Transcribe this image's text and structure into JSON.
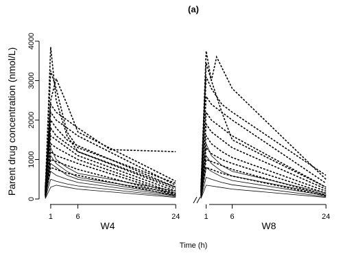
{
  "chart_data": {
    "type": "line",
    "title": "(a)",
    "xlabel": "Time (h)",
    "ylabel": "Parent drug concentration (nmol/L)",
    "ylim": [
      0,
      4000
    ],
    "yticks": [
      0,
      1000,
      2000,
      3000,
      4000
    ],
    "grid": false,
    "legend": "none",
    "panels": [
      {
        "name": "W4",
        "xlim": [
          0,
          27
        ],
        "xticks": [
          1,
          6,
          24
        ],
        "dashed_series": [
          [
            [
              0,
              200
            ],
            [
              1,
              3850
            ],
            [
              2,
              2500
            ],
            [
              4,
              1600
            ],
            [
              6,
              1200
            ],
            [
              24,
              300
            ]
          ],
          [
            [
              0,
              100
            ],
            [
              1,
              3250
            ],
            [
              2,
              2800
            ],
            [
              4,
              1700
            ],
            [
              6,
              1300
            ],
            [
              24,
              400
            ]
          ],
          [
            [
              0,
              150
            ],
            [
              1,
              2500
            ],
            [
              2,
              3050
            ],
            [
              4,
              2400
            ],
            [
              6,
              1700
            ],
            [
              24,
              450
            ]
          ],
          [
            [
              0,
              300
            ],
            [
              1,
              2400
            ],
            [
              2,
              2200
            ],
            [
              4,
              2000
            ],
            [
              6,
              1800
            ],
            [
              12,
              1250
            ],
            [
              24,
              1200
            ]
          ],
          [
            [
              0,
              250
            ],
            [
              1,
              2200
            ],
            [
              2,
              2000
            ],
            [
              4,
              1800
            ],
            [
              6,
              1600
            ],
            [
              24,
              350
            ]
          ],
          [
            [
              0,
              200
            ],
            [
              1,
              2000
            ],
            [
              2,
              1800
            ],
            [
              4,
              1500
            ],
            [
              6,
              1350
            ],
            [
              24,
              300
            ]
          ],
          [
            [
              0,
              150
            ],
            [
              1,
              1800
            ],
            [
              2,
              1600
            ],
            [
              4,
              1400
            ],
            [
              6,
              1200
            ],
            [
              24,
              250
            ]
          ],
          [
            [
              0,
              100
            ],
            [
              1,
              1600
            ],
            [
              2,
              1500
            ],
            [
              4,
              1300
            ],
            [
              6,
              1100
            ],
            [
              24,
              200
            ]
          ],
          [
            [
              0,
              100
            ],
            [
              1,
              1400
            ],
            [
              2,
              1300
            ],
            [
              4,
              1150
            ],
            [
              6,
              1000
            ],
            [
              24,
              150
            ]
          ],
          [
            [
              0,
              100
            ],
            [
              1,
              1200
            ],
            [
              2,
              1100
            ],
            [
              4,
              1000
            ],
            [
              6,
              900
            ],
            [
              24,
              120
            ]
          ],
          [
            [
              0,
              80
            ],
            [
              1,
              1000
            ],
            [
              2,
              950
            ],
            [
              4,
              850
            ],
            [
              6,
              750
            ],
            [
              24,
              100
            ]
          ],
          [
            [
              0,
              60
            ],
            [
              1,
              800
            ],
            [
              2,
              750
            ],
            [
              4,
              650
            ],
            [
              6,
              600
            ],
            [
              24,
              80
            ]
          ]
        ],
        "solid_series": [
          [
            [
              0,
              50
            ],
            [
              1,
              1300
            ],
            [
              2,
              1000
            ],
            [
              4,
              800
            ],
            [
              6,
              650
            ],
            [
              24,
              200
            ]
          ],
          [
            [
              0,
              50
            ],
            [
              1,
              1100
            ],
            [
              2,
              900
            ],
            [
              4,
              700
            ],
            [
              6,
              550
            ],
            [
              24,
              150
            ]
          ],
          [
            [
              0,
              40
            ],
            [
              1,
              900
            ],
            [
              2,
              800
            ],
            [
              4,
              600
            ],
            [
              6,
              500
            ],
            [
              24,
              100
            ]
          ],
          [
            [
              0,
              30
            ],
            [
              1,
              700
            ],
            [
              2,
              600
            ],
            [
              4,
              500
            ],
            [
              6,
              420
            ],
            [
              24,
              80
            ]
          ],
          [
            [
              0,
              20
            ],
            [
              1,
              500
            ],
            [
              2,
              450
            ],
            [
              4,
              380
            ],
            [
              6,
              330
            ],
            [
              24,
              60
            ]
          ],
          [
            [
              0,
              10
            ],
            [
              1,
              300
            ],
            [
              2,
              350
            ],
            [
              4,
              300
            ],
            [
              6,
              250
            ],
            [
              24,
              40
            ]
          ]
        ]
      },
      {
        "name": "W8",
        "xlim": [
          0,
          27
        ],
        "xticks": [
          1,
          6,
          24
        ],
        "dashed_series": [
          [
            [
              0,
              300
            ],
            [
              1,
              3750
            ],
            [
              2,
              3000
            ],
            [
              4,
              2200
            ],
            [
              6,
              1500
            ],
            [
              24,
              300
            ]
          ],
          [
            [
              0,
              250
            ],
            [
              1,
              3450
            ],
            [
              2,
              3000
            ],
            [
              3,
              3600
            ],
            [
              6,
              2800
            ],
            [
              24,
              500
            ]
          ],
          [
            [
              0,
              200
            ],
            [
              1,
              3100
            ],
            [
              2,
              2800
            ],
            [
              4,
              2400
            ],
            [
              6,
              2200
            ],
            [
              24,
              600
            ]
          ],
          [
            [
              0,
              200
            ],
            [
              1,
              2600
            ],
            [
              2,
              2400
            ],
            [
              4,
              2200
            ],
            [
              6,
              2000
            ],
            [
              24,
              400
            ]
          ],
          [
            [
              0,
              150
            ],
            [
              1,
              2200
            ],
            [
              2,
              2000
            ],
            [
              4,
              1800
            ],
            [
              6,
              1600
            ],
            [
              24,
              300
            ]
          ],
          [
            [
              0,
              150
            ],
            [
              1,
              1900
            ],
            [
              2,
              1700
            ],
            [
              4,
              1500
            ],
            [
              6,
              1300
            ],
            [
              24,
              250
            ]
          ],
          [
            [
              0,
              100
            ],
            [
              1,
              1600
            ],
            [
              2,
              1400
            ],
            [
              4,
              1200
            ],
            [
              6,
              1050
            ],
            [
              24,
              200
            ]
          ],
          [
            [
              0,
              100
            ],
            [
              1,
              1300
            ],
            [
              2,
              1150
            ],
            [
              4,
              1000
            ],
            [
              6,
              900
            ],
            [
              24,
              150
            ]
          ],
          [
            [
              0,
              80
            ],
            [
              1,
              1000
            ],
            [
              2,
              950
            ],
            [
              4,
              850
            ],
            [
              6,
              750
            ],
            [
              24,
              100
            ]
          ],
          [
            [
              0,
              60
            ],
            [
              1,
              800
            ],
            [
              2,
              750
            ],
            [
              4,
              650
            ],
            [
              6,
              580
            ],
            [
              24,
              80
            ]
          ]
        ],
        "solid_series": [
          [
            [
              0,
              50
            ],
            [
              1,
              1400
            ],
            [
              2,
              1100
            ],
            [
              4,
              850
            ],
            [
              6,
              700
            ],
            [
              24,
              150
            ]
          ],
          [
            [
              0,
              40
            ],
            [
              1,
              1100
            ],
            [
              2,
              900
            ],
            [
              4,
              700
            ],
            [
              6,
              580
            ],
            [
              24,
              120
            ]
          ],
          [
            [
              0,
              30
            ],
            [
              1,
              800
            ],
            [
              2,
              700
            ],
            [
              4,
              560
            ],
            [
              6,
              470
            ],
            [
              24,
              90
            ]
          ],
          [
            [
              0,
              20
            ],
            [
              1,
              550
            ],
            [
              2,
              500
            ],
            [
              4,
              420
            ],
            [
              6,
              360
            ],
            [
              24,
              60
            ]
          ],
          [
            [
              0,
              10
            ],
            [
              1,
              350
            ],
            [
              2,
              330
            ],
            [
              4,
              290
            ],
            [
              6,
              250
            ],
            [
              24,
              40
            ]
          ]
        ]
      }
    ]
  }
}
